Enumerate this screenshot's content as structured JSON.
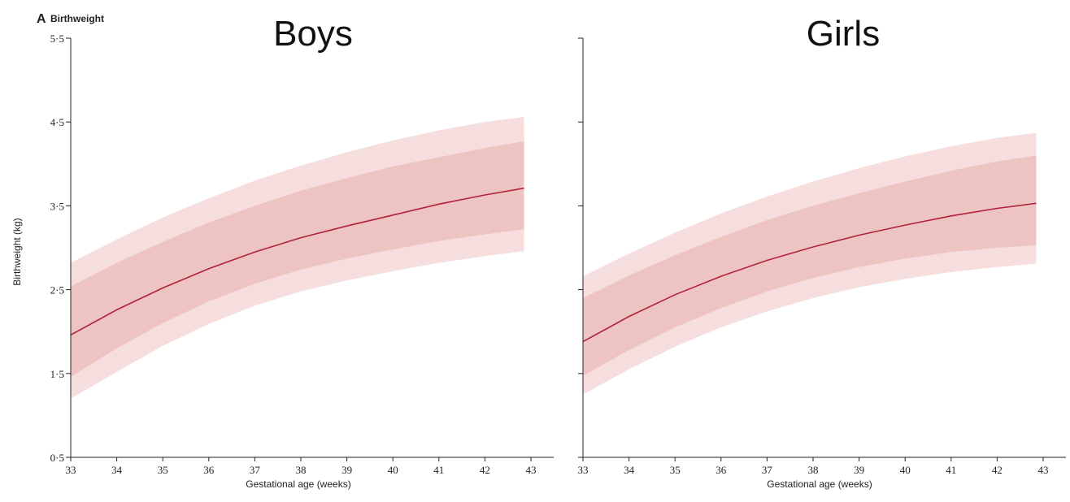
{
  "figure": {
    "panel_letter": "A",
    "panel_caption": "Birthweight"
  },
  "chart_data": [
    {
      "type": "area",
      "title": "Boys",
      "xlabel": "Gestational age (weeks)",
      "ylabel": "Birthweight (kg)",
      "xlim": [
        33,
        43
      ],
      "ylim": [
        0.5,
        5.5
      ],
      "x_ticks": [
        "33",
        "34",
        "35",
        "36",
        "37",
        "38",
        "39",
        "40",
        "41",
        "42",
        "43"
      ],
      "y_ticks": [
        "0·5",
        "1·5",
        "2·5",
        "3·5",
        "4·5",
        "5·5"
      ],
      "x": [
        33,
        34,
        35,
        36,
        37,
        38,
        39,
        40,
        41,
        42,
        42.85
      ],
      "series": [
        {
          "role": "outer-lower",
          "values": [
            1.2,
            1.52,
            1.83,
            2.09,
            2.31,
            2.48,
            2.61,
            2.72,
            2.82,
            2.9,
            2.96
          ]
        },
        {
          "role": "inner-lower",
          "values": [
            1.46,
            1.8,
            2.1,
            2.36,
            2.57,
            2.74,
            2.87,
            2.98,
            3.08,
            3.16,
            3.22
          ]
        },
        {
          "role": "median",
          "values": [
            1.96,
            2.26,
            2.52,
            2.75,
            2.95,
            3.12,
            3.26,
            3.39,
            3.52,
            3.63,
            3.71
          ]
        },
        {
          "role": "inner-upper",
          "values": [
            2.54,
            2.82,
            3.07,
            3.3,
            3.5,
            3.68,
            3.83,
            3.97,
            4.08,
            4.19,
            4.27
          ]
        },
        {
          "role": "outer-upper",
          "values": [
            2.82,
            3.1,
            3.36,
            3.59,
            3.8,
            3.98,
            4.14,
            4.28,
            4.4,
            4.5,
            4.56
          ]
        }
      ]
    },
    {
      "type": "area",
      "title": "Girls",
      "xlabel": "Gestational age (weeks)",
      "ylabel": "",
      "xlim": [
        33,
        43
      ],
      "ylim": [
        0.5,
        5.5
      ],
      "x_ticks": [
        "33",
        "34",
        "35",
        "36",
        "37",
        "38",
        "39",
        "40",
        "41",
        "42",
        "43"
      ],
      "y_ticks": [
        "",
        "",
        "",
        "",
        "",
        ""
      ],
      "x": [
        33,
        34,
        35,
        36,
        37,
        38,
        39,
        40,
        41,
        42,
        42.85
      ],
      "series": [
        {
          "role": "outer-lower",
          "values": [
            1.25,
            1.55,
            1.82,
            2.05,
            2.24,
            2.4,
            2.53,
            2.63,
            2.71,
            2.77,
            2.81
          ]
        },
        {
          "role": "inner-lower",
          "values": [
            1.47,
            1.78,
            2.05,
            2.28,
            2.48,
            2.64,
            2.77,
            2.87,
            2.95,
            3.0,
            3.03
          ]
        },
        {
          "role": "median",
          "values": [
            1.88,
            2.18,
            2.44,
            2.66,
            2.85,
            3.01,
            3.15,
            3.27,
            3.38,
            3.47,
            3.53
          ]
        },
        {
          "role": "inner-upper",
          "values": [
            2.4,
            2.67,
            2.91,
            3.13,
            3.33,
            3.5,
            3.65,
            3.79,
            3.92,
            4.03,
            4.1
          ]
        },
        {
          "role": "outer-upper",
          "values": [
            2.66,
            2.93,
            3.18,
            3.41,
            3.61,
            3.79,
            3.95,
            4.09,
            4.21,
            4.31,
            4.37
          ]
        }
      ]
    }
  ],
  "colors": {
    "outer_band": "#f6dede",
    "inner_band": "#eec4c2",
    "median_line": "#b0213a",
    "axis": "#222222"
  }
}
